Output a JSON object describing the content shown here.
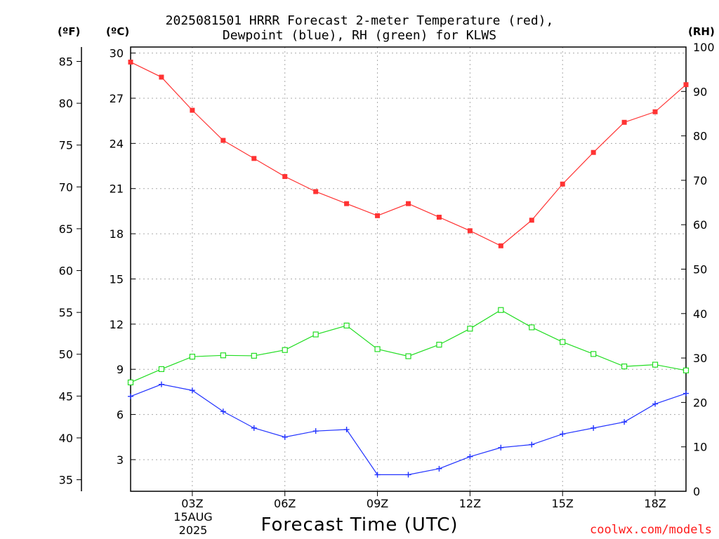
{
  "header": {
    "title_line1": "2025081501 HRRR Forecast 2-meter Temperature (red),",
    "title_line2": "Dewpoint (blue), RH (green) for KLWS"
  },
  "units": {
    "fahrenheit": "(ºF)",
    "celsius": "(ºC)",
    "rh": "(RH)"
  },
  "footer": {
    "xlabel": "Forecast Time (UTC)",
    "date_day": "15AUG",
    "date_year": "2025",
    "credit": "coolwx.com/models"
  },
  "colors": {
    "temperature": "#ff3333",
    "dewpoint": "#2233ff",
    "rh": "#22dd22",
    "grid": "#aaaaaa"
  },
  "chart_data": {
    "type": "line",
    "x": [
      "01Z",
      "02Z",
      "03Z",
      "04Z",
      "05Z",
      "06Z",
      "07Z",
      "08Z",
      "09Z",
      "10Z",
      "11Z",
      "12Z",
      "13Z",
      "14Z",
      "15Z",
      "16Z",
      "17Z",
      "18Z",
      "19Z"
    ],
    "xticks": [
      "03Z",
      "06Z",
      "09Z",
      "12Z",
      "15Z",
      "18Z"
    ],
    "ylim_c": [
      0.9,
      30.4
    ],
    "ylim_rh": [
      0,
      100
    ],
    "yticks_c": [
      3,
      6,
      9,
      12,
      15,
      18,
      21,
      24,
      27,
      30
    ],
    "yticks_f": [
      35,
      40,
      45,
      50,
      55,
      60,
      65,
      70,
      75,
      80,
      85
    ],
    "yticks_rh": [
      0,
      10,
      20,
      30,
      40,
      50,
      60,
      70,
      80,
      90,
      100
    ],
    "grid": true,
    "series": [
      {
        "name": "Temperature",
        "axis": "C",
        "marker": "filled-square",
        "values": [
          29.4,
          28.4,
          26.2,
          24.2,
          23.0,
          21.8,
          20.8,
          20.0,
          19.2,
          20.0,
          19.1,
          18.2,
          17.2,
          18.9,
          21.3,
          23.4,
          25.4,
          26.1,
          27.9
        ]
      },
      {
        "name": "Dewpoint",
        "axis": "C",
        "marker": "plus",
        "values": [
          7.2,
          8.0,
          7.6,
          6.2,
          5.1,
          4.5,
          4.9,
          5.0,
          2.0,
          2.0,
          2.4,
          3.2,
          3.8,
          4.0,
          4.7,
          5.1,
          5.5,
          6.7,
          7.4
        ]
      },
      {
        "name": "RH",
        "axis": "RH",
        "marker": "open-square",
        "values": [
          24.5,
          27.5,
          30.3,
          30.6,
          30.5,
          31.8,
          35.3,
          37.3,
          32.0,
          30.4,
          33.0,
          36.6,
          40.8,
          36.9,
          33.6,
          30.9,
          28.1,
          28.5,
          27.2
        ]
      }
    ]
  }
}
